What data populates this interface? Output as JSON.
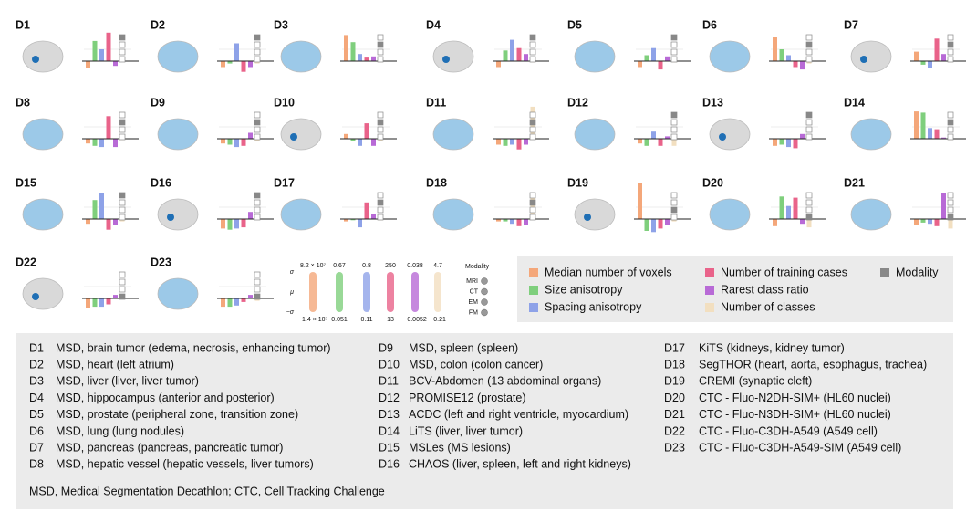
{
  "panels": [
    {
      "label": "D1",
      "values": [
        -0.6,
        1.7,
        1.0,
        2.4,
        -0.4,
        0.1
      ],
      "modality": "MRI"
    },
    {
      "label": "D2",
      "values": [
        -0.5,
        -0.2,
        1.5,
        -0.9,
        -0.5,
        -0.2
      ],
      "modality": "MRI"
    },
    {
      "label": "D3",
      "values": [
        2.2,
        1.6,
        0.6,
        0.3,
        0.4,
        -0.1
      ],
      "modality": "CT"
    },
    {
      "label": "D4",
      "values": [
        -0.5,
        0.9,
        1.8,
        1.1,
        0.6,
        -0.1
      ],
      "modality": "MRI"
    },
    {
      "label": "D5",
      "values": [
        -0.5,
        0.5,
        1.1,
        -0.7,
        0.4,
        -0.1
      ],
      "modality": "MRI"
    },
    {
      "label": "D6",
      "values": [
        2.0,
        1.0,
        0.5,
        -0.5,
        -0.7,
        -0.2
      ],
      "modality": "CT"
    },
    {
      "label": "D7",
      "values": [
        0.8,
        -0.3,
        -0.6,
        1.9,
        0.6,
        -0.1
      ],
      "modality": "CT"
    },
    {
      "label": "D8",
      "values": [
        -0.4,
        -0.6,
        -0.7,
        1.9,
        -0.7,
        -0.1
      ],
      "modality": "CT"
    },
    {
      "label": "D9",
      "values": [
        -0.4,
        -0.5,
        -0.7,
        -0.6,
        0.5,
        -0.2
      ],
      "modality": "CT"
    },
    {
      "label": "D10",
      "values": [
        0.4,
        -0.2,
        -0.6,
        1.3,
        -0.6,
        -0.2
      ],
      "modality": "CT"
    },
    {
      "label": "D11",
      "values": [
        -0.5,
        -0.6,
        -0.5,
        -0.9,
        -0.5,
        2.7
      ],
      "modality": "CT"
    },
    {
      "label": "D12",
      "values": [
        -0.4,
        -0.6,
        0.6,
        -0.6,
        0.2,
        -0.6
      ],
      "modality": "MRI"
    },
    {
      "label": "D13",
      "values": [
        -0.6,
        -0.5,
        -0.7,
        -0.8,
        0.4,
        0.2
      ],
      "modality": "MRI"
    },
    {
      "label": "D14",
      "values": [
        2.3,
        2.2,
        0.9,
        0.8,
        0.1,
        -0.1
      ],
      "modality": "CT"
    },
    {
      "label": "D15",
      "values": [
        -0.4,
        1.6,
        2.2,
        -0.9,
        -0.5,
        -0.2
      ],
      "modality": "MRI"
    },
    {
      "label": "D16",
      "values": [
        -0.8,
        -0.9,
        -0.8,
        -0.7,
        0.6,
        0.1
      ],
      "modality": "MRI"
    },
    {
      "label": "D17",
      "values": [
        -0.2,
        -0.1,
        -0.7,
        1.4,
        0.4,
        -0.1
      ],
      "modality": "CT"
    },
    {
      "label": "D18",
      "values": [
        -0.2,
        -0.2,
        -0.4,
        -0.6,
        -0.5,
        1.9
      ],
      "modality": "CT"
    },
    {
      "label": "D19",
      "values": [
        3.0,
        -1.0,
        -1.1,
        -0.8,
        -0.5,
        -0.2
      ],
      "modality": "EM"
    },
    {
      "label": "D20",
      "values": [
        -0.6,
        1.9,
        1.1,
        1.8,
        -0.4,
        -0.7
      ],
      "modality": "FM"
    },
    {
      "label": "D21",
      "values": [
        -0.5,
        -0.3,
        -0.4,
        -0.6,
        2.2,
        -0.8
      ],
      "modality": "FM"
    },
    {
      "label": "D22",
      "values": [
        -0.8,
        -0.7,
        -0.7,
        -0.5,
        0.3,
        0.0
      ],
      "modality": "FM"
    },
    {
      "label": "D23",
      "values": [
        -0.7,
        -0.7,
        -0.6,
        -0.3,
        0.3,
        -0.2
      ],
      "modality": "FM"
    }
  ],
  "scale_key": {
    "top_labels": [
      "8.2 × 10⁷",
      "0.67",
      "0.8",
      "250",
      "0.038",
      "4.7"
    ],
    "bottom_labels": [
      "−1.4 × 10⁷",
      "0.051",
      "0.11",
      "13",
      "−0.0052",
      "−0.21"
    ],
    "axis_labels": [
      "σ",
      "μ",
      "−σ"
    ]
  },
  "modality_key": {
    "title": "Modality",
    "items": [
      "MRI",
      "CT",
      "EM",
      "FM"
    ]
  },
  "legend": [
    {
      "name": "Median number of voxels",
      "color": "#f4a77a"
    },
    {
      "name": "Size anisotropy",
      "color": "#7fcf7d"
    },
    {
      "name": "Spacing anisotropy",
      "color": "#8ea2e8"
    },
    {
      "name": "Number of training cases",
      "color": "#e9638a"
    },
    {
      "name": "Rarest class ratio",
      "color": "#b86ad6"
    },
    {
      "name": "Number of classes",
      "color": "#f2dfc0"
    },
    {
      "name": "Modality",
      "color": "#888888"
    }
  ],
  "descriptions": [
    {
      "id": "D1",
      "text": "MSD, brain tumor (edema, necrosis, enhancing tumor)"
    },
    {
      "id": "D2",
      "text": "MSD, heart (left atrium)"
    },
    {
      "id": "D3",
      "text": "MSD, liver (liver, liver tumor)"
    },
    {
      "id": "D4",
      "text": "MSD, hippocampus (anterior and posterior)"
    },
    {
      "id": "D5",
      "text": "MSD, prostate (peripheral zone, transition zone)"
    },
    {
      "id": "D6",
      "text": "MSD, lung (lung nodules)"
    },
    {
      "id": "D7",
      "text": "MSD, pancreas (pancreas, pancreatic tumor)"
    },
    {
      "id": "D8",
      "text": "MSD, hepatic vessel (hepatic vessels, liver tumors)"
    },
    {
      "id": "D9",
      "text": "MSD, spleen (spleen)"
    },
    {
      "id": "D10",
      "text": "MSD, colon (colon cancer)"
    },
    {
      "id": "D11",
      "text": "BCV-Abdomen (13 abdominal organs)"
    },
    {
      "id": "D12",
      "text": "PROMISE12 (prostate)"
    },
    {
      "id": "D13",
      "text": "ACDC (left and right ventricle, myocardium)"
    },
    {
      "id": "D14",
      "text": "LiTS (liver, liver tumor)"
    },
    {
      "id": "D15",
      "text": "MSLes (MS lesions)"
    },
    {
      "id": "D16",
      "text": "CHAOS (liver, spleen, left and right kidneys)"
    },
    {
      "id": "D17",
      "text": "KiTS (kidneys, kidney tumor)"
    },
    {
      "id": "D18",
      "text": "SegTHOR (heart, aorta, esophagus, trachea)"
    },
    {
      "id": "D19",
      "text": "CREMI (synaptic cleft)"
    },
    {
      "id": "D20",
      "text": "CTC - Fluo-N2DH-SIM+ (HL60 nuclei)"
    },
    {
      "id": "D21",
      "text": "CTC - Fluo-N3DH-SIM+ (HL60 nuclei)"
    },
    {
      "id": "D22",
      "text": "CTC - Fluo-C3DH-A549 (A549 cell)"
    },
    {
      "id": "D23",
      "text": "CTC - Fluo-C3DH-A549-SIM (A549 cell)"
    }
  ],
  "footnote": "MSD, Medical Segmentation Decathlon; CTC, Cell Tracking Challenge"
}
